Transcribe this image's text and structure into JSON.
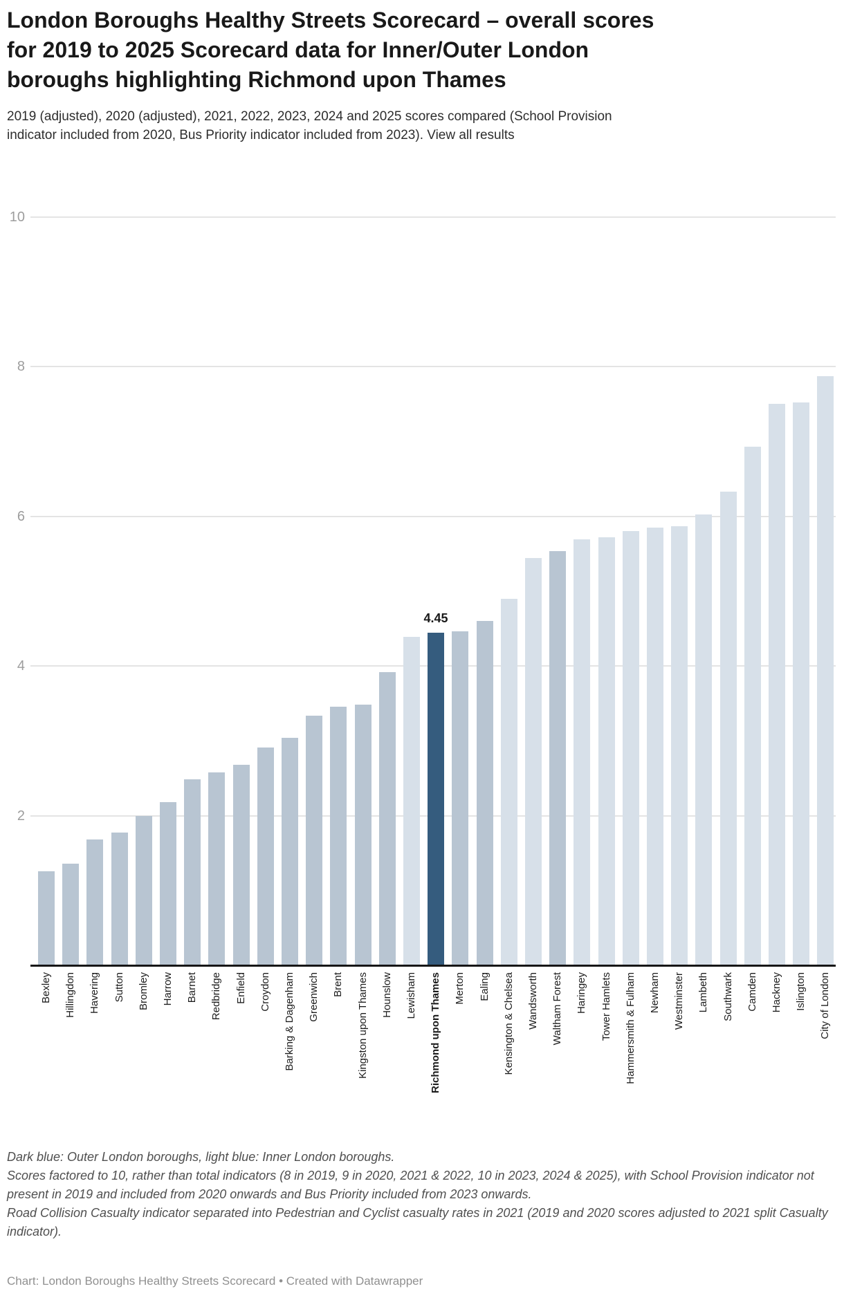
{
  "header": {
    "title": "London Boroughs Healthy Streets Scorecard – overall scores for 2019 to 2025 Scorecard data for Inner/Outer London boroughs highlighting Richmond upon Thames",
    "description": "2019 (adjusted), 2020 (adjusted), 2021, 2022, 2023, 2024 and 2025 scores compared (School Provision indicator included from 2020, Bus Priority indicator included from 2023). ",
    "link_text": "View all results"
  },
  "chart_data": {
    "type": "bar",
    "title": "London Boroughs Healthy Streets Scorecard – overall scores",
    "xlabel": "",
    "ylabel": "",
    "ylim": [
      0,
      10
    ],
    "yticks": [
      2,
      4,
      6,
      8,
      10
    ],
    "grid": true,
    "legend": "none (explained in footnote: dark blue = Outer London, light blue = Inner London)",
    "categories": [
      "Bexley",
      "Hillingdon",
      "Havering",
      "Sutton",
      "Bromley",
      "Harrow",
      "Barnet",
      "Redbridge",
      "Enfield",
      "Croydon",
      "Barking & Dagenham",
      "Greenwich",
      "Brent",
      "Kingston upon Thames",
      "Hounslow",
      "Lewisham",
      "Richmond upon Thames",
      "Merton",
      "Ealing",
      "Kensington & Chelsea",
      "Wandsworth",
      "Waltham Forest",
      "Haringey",
      "Tower Hamlets",
      "Hammersmith & Fulham",
      "Newham",
      "Westminster",
      "Lambeth",
      "Southwark",
      "Camden",
      "Hackney",
      "Islington",
      "City of London"
    ],
    "values": [
      1.26,
      1.36,
      1.68,
      1.77,
      2.0,
      2.18,
      2.49,
      2.58,
      2.68,
      2.91,
      3.04,
      3.34,
      3.46,
      3.48,
      3.92,
      4.39,
      4.45,
      4.46,
      4.6,
      4.9,
      5.44,
      5.54,
      5.69,
      5.72,
      5.8,
      5.85,
      5.87,
      6.03,
      6.33,
      6.93,
      7.5,
      7.52,
      7.87
    ],
    "groups": [
      "outer",
      "outer",
      "outer",
      "outer",
      "outer",
      "outer",
      "outer",
      "outer",
      "outer",
      "outer",
      "outer",
      "outer",
      "outer",
      "outer",
      "outer",
      "inner",
      "highlight",
      "outer",
      "outer",
      "inner",
      "inner",
      "outer",
      "inner",
      "inner",
      "inner",
      "inner",
      "inner",
      "inner",
      "inner",
      "inner",
      "inner",
      "inner",
      "inner"
    ],
    "highlight_category": "Richmond upon Thames",
    "value_label": {
      "text": "4.45",
      "category": "Richmond upon Thames"
    },
    "colors": {
      "outer": "#b8c5d2",
      "inner": "#d7e0e9",
      "highlight": "#355c7e",
      "grid": "#e4e4e4",
      "axis": "#161616"
    }
  },
  "footer": {
    "notes": [
      "Dark blue: Outer London boroughs, light blue: Inner London boroughs.",
      "Scores factored to 10, rather than total indicators (8 in 2019, 9 in 2020, 2021 & 2022, 10 in 2023, 2024 & 2025), with School Provision indicator not present in 2019 and included from 2020 onwards and Bus Priority included from 2023 onwards.",
      "Road Collision Casualty indicator separated into Pedestrian and Cyclist casualty rates in 2021 (2019 and 2020 scores adjusted to 2021 split Casualty indicator)."
    ],
    "attribution": "Chart: London Boroughs Healthy Streets Scorecard • Created with Datawrapper"
  }
}
